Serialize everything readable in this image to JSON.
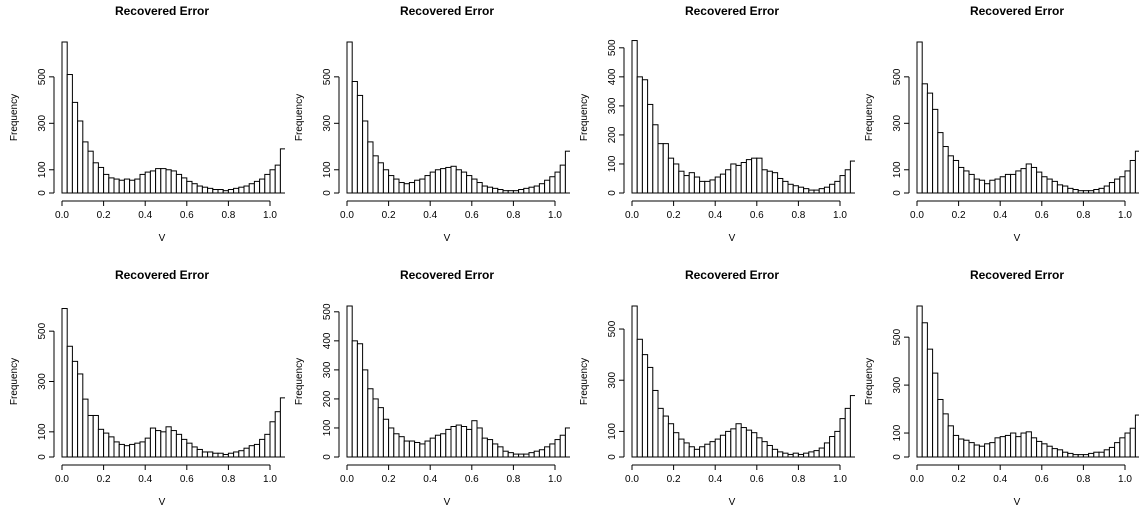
{
  "chart_data": [
    {
      "type": "bar",
      "title": "Recovered Error",
      "xlabel": "V",
      "ylabel": "Frequency",
      "xlim": [
        0,
        1
      ],
      "ylim": [
        0,
        650
      ],
      "xticks": [
        "0.0",
        "0.2",
        "0.4",
        "0.6",
        "0.8",
        "1.0"
      ],
      "yticks": [
        "0",
        "100",
        "300",
        "500"
      ],
      "bin_width": 0.025,
      "values": [
        650,
        510,
        390,
        310,
        220,
        180,
        130,
        110,
        80,
        65,
        60,
        55,
        60,
        55,
        60,
        80,
        90,
        95,
        105,
        105,
        100,
        95,
        80,
        65,
        50,
        40,
        30,
        25,
        20,
        15,
        15,
        10,
        15,
        20,
        25,
        30,
        40,
        50,
        60,
        80,
        100,
        120,
        190,
        200
      ]
    },
    {
      "type": "bar",
      "title": "Recovered Error",
      "xlabel": "V",
      "ylabel": "Frequency",
      "xlim": [
        0,
        1
      ],
      "ylim": [
        0,
        650
      ],
      "xticks": [
        "0.0",
        "0.2",
        "0.4",
        "0.6",
        "0.8",
        "1.0"
      ],
      "yticks": [
        "0",
        "100",
        "300",
        "500"
      ],
      "bin_width": 0.025,
      "values": [
        650,
        480,
        420,
        310,
        220,
        160,
        130,
        100,
        75,
        60,
        45,
        40,
        45,
        55,
        60,
        75,
        90,
        100,
        105,
        110,
        115,
        100,
        90,
        75,
        60,
        45,
        30,
        25,
        20,
        15,
        10,
        10,
        10,
        15,
        20,
        25,
        30,
        40,
        55,
        70,
        90,
        120,
        180,
        210
      ]
    },
    {
      "type": "bar",
      "title": "Recovered Error",
      "xlabel": "V",
      "ylabel": "Frequency",
      "xlim": [
        0,
        1
      ],
      "ylim": [
        0,
        520
      ],
      "xticks": [
        "0.0",
        "0.2",
        "0.4",
        "0.6",
        "0.8",
        "1.0"
      ],
      "yticks": [
        "0",
        "100",
        "200",
        "300",
        "400",
        "500"
      ],
      "bin_width": 0.025,
      "values": [
        525,
        400,
        390,
        305,
        235,
        170,
        170,
        120,
        100,
        75,
        60,
        70,
        55,
        40,
        40,
        45,
        55,
        65,
        80,
        100,
        95,
        105,
        115,
        120,
        120,
        80,
        75,
        70,
        50,
        40,
        30,
        25,
        20,
        15,
        10,
        10,
        15,
        20,
        30,
        40,
        60,
        80,
        110,
        130,
        200,
        255
      ]
    },
    {
      "type": "bar",
      "title": "Recovered Error",
      "xlabel": "V",
      "ylabel": "Frequency",
      "xlim": [
        0,
        1
      ],
      "ylim": [
        0,
        650
      ],
      "xticks": [
        "0.0",
        "0.2",
        "0.4",
        "0.6",
        "0.8",
        "1.0"
      ],
      "yticks": [
        "0",
        "100",
        "300",
        "500"
      ],
      "bin_width": 0.025,
      "values": [
        650,
        470,
        430,
        360,
        260,
        200,
        160,
        140,
        110,
        95,
        80,
        60,
        55,
        40,
        55,
        60,
        70,
        80,
        80,
        95,
        105,
        125,
        110,
        90,
        70,
        60,
        50,
        35,
        30,
        20,
        15,
        10,
        10,
        10,
        15,
        20,
        30,
        45,
        60,
        70,
        95,
        140,
        180,
        220
      ]
    },
    {
      "type": "bar",
      "title": "Recovered Error",
      "xlabel": "V",
      "ylabel": "Frequency",
      "xlim": [
        0,
        1
      ],
      "ylim": [
        0,
        600
      ],
      "xticks": [
        "0.0",
        "0.2",
        "0.4",
        "0.6",
        "0.8",
        "1.0"
      ],
      "yticks": [
        "0",
        "100",
        "300",
        "500"
      ],
      "bin_width": 0.025,
      "values": [
        590,
        440,
        380,
        330,
        230,
        165,
        165,
        110,
        95,
        80,
        60,
        50,
        45,
        50,
        55,
        60,
        75,
        115,
        105,
        100,
        120,
        105,
        90,
        70,
        55,
        40,
        30,
        20,
        20,
        15,
        15,
        10,
        15,
        20,
        25,
        35,
        45,
        50,
        70,
        90,
        140,
        180,
        235
      ]
    },
    {
      "type": "bar",
      "title": "Recovered Error",
      "xlabel": "V",
      "ylabel": "Frequency",
      "xlim": [
        0,
        1
      ],
      "ylim": [
        0,
        520
      ],
      "xticks": [
        "0.0",
        "0.2",
        "0.4",
        "0.6",
        "0.8",
        "1.0"
      ],
      "yticks": [
        "0",
        "100",
        "200",
        "300",
        "400",
        "500"
      ],
      "bin_width": 0.025,
      "values": [
        520,
        400,
        390,
        300,
        235,
        200,
        170,
        130,
        100,
        80,
        70,
        55,
        55,
        50,
        45,
        55,
        65,
        75,
        80,
        95,
        105,
        110,
        105,
        95,
        125,
        100,
        65,
        60,
        45,
        35,
        20,
        15,
        10,
        10,
        10,
        15,
        20,
        25,
        35,
        45,
        60,
        75,
        100,
        150,
        200,
        265
      ]
    },
    {
      "type": "bar",
      "title": "Recovered Error",
      "xlabel": "V",
      "ylabel": "Frequency",
      "xlim": [
        0,
        1
      ],
      "ylim": [
        0,
        590
      ],
      "xticks": [
        "0.0",
        "0.2",
        "0.4",
        "0.6",
        "0.8",
        "1.0"
      ],
      "yticks": [
        "0",
        "100",
        "300",
        "500"
      ],
      "bin_width": 0.025,
      "values": [
        590,
        460,
        400,
        350,
        260,
        190,
        160,
        130,
        95,
        70,
        55,
        40,
        30,
        40,
        50,
        60,
        70,
        85,
        100,
        110,
        130,
        115,
        105,
        95,
        75,
        60,
        45,
        30,
        20,
        15,
        10,
        15,
        10,
        15,
        20,
        25,
        35,
        55,
        80,
        100,
        150,
        190,
        240
      ]
    },
    {
      "type": "bar",
      "title": "Recovered Error",
      "xlabel": "V",
      "ylabel": "Frequency",
      "xlim": [
        0,
        1
      ],
      "ylim": [
        0,
        630
      ],
      "xticks": [
        "0.0",
        "0.2",
        "0.4",
        "0.6",
        "0.8",
        "1.0"
      ],
      "yticks": [
        "0",
        "100",
        "300",
        "500"
      ],
      "bin_width": 0.025,
      "values": [
        630,
        560,
        450,
        350,
        240,
        180,
        130,
        90,
        75,
        70,
        60,
        50,
        45,
        55,
        60,
        80,
        85,
        90,
        100,
        85,
        100,
        105,
        80,
        65,
        55,
        45,
        35,
        30,
        20,
        15,
        10,
        10,
        10,
        15,
        20,
        20,
        30,
        40,
        60,
        80,
        100,
        120,
        175,
        195
      ]
    }
  ]
}
